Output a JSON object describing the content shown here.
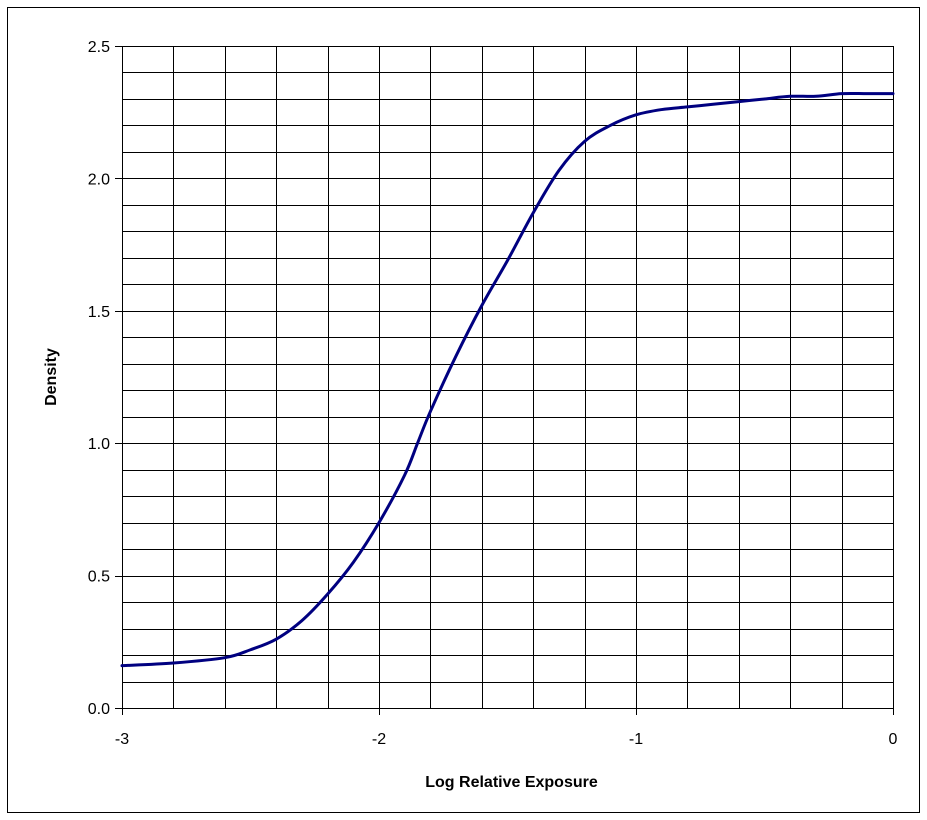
{
  "chart_data": {
    "type": "line",
    "title": "",
    "xlabel": "Log Relative Exposure",
    "ylabel": "Density",
    "xlim": [
      -3,
      0
    ],
    "ylim": [
      0,
      2.5
    ],
    "x_ticks": [
      -3,
      -2,
      -1,
      0
    ],
    "x_tick_labels": [
      "-3",
      "-2",
      "-1",
      "0"
    ],
    "x_minor_step": 0.2,
    "y_ticks": [
      0,
      0.5,
      1.0,
      1.5,
      2.0,
      2.5
    ],
    "y_tick_labels": [
      "0.0",
      "0.5",
      "1.0",
      "1.5",
      "2.0",
      "2.5"
    ],
    "y_minor_step": 0.1,
    "grid": true,
    "legend": "none",
    "series": [
      {
        "color": "#000080",
        "x": [
          -3.0,
          -2.8,
          -2.6,
          -2.5,
          -2.4,
          -2.3,
          -2.2,
          -2.1,
          -2.0,
          -1.9,
          -1.85,
          -1.8,
          -1.7,
          -1.6,
          -1.5,
          -1.4,
          -1.3,
          -1.2,
          -1.1,
          -1.0,
          -0.9,
          -0.8,
          -0.7,
          -0.6,
          -0.5,
          -0.4,
          -0.3,
          -0.2,
          -0.1,
          0.0
        ],
        "y": [
          0.16,
          0.17,
          0.19,
          0.22,
          0.26,
          0.33,
          0.43,
          0.55,
          0.7,
          0.88,
          1.0,
          1.12,
          1.33,
          1.52,
          1.69,
          1.87,
          2.03,
          2.14,
          2.2,
          2.24,
          2.26,
          2.27,
          2.28,
          2.29,
          2.3,
          2.31,
          2.31,
          2.32,
          2.32,
          2.32
        ]
      }
    ]
  }
}
